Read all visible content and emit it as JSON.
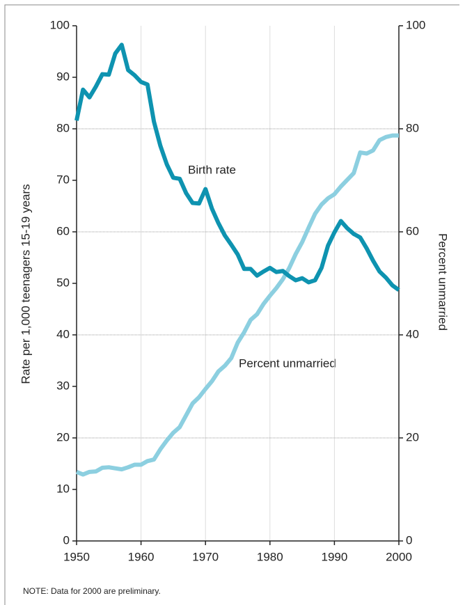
{
  "chart_data": {
    "type": "line",
    "ylabel": "Rate per 1,000 teenagers 15-19 years",
    "y2label": "Percent unmarried",
    "note": "NOTE: Data for 2000 are preliminary.",
    "annotations": [
      "Birth rate",
      "Percent unmarried"
    ],
    "x": [
      1950,
      1951,
      1952,
      1953,
      1954,
      1955,
      1956,
      1957,
      1958,
      1959,
      1960,
      1961,
      1962,
      1963,
      1964,
      1965,
      1966,
      1967,
      1968,
      1969,
      1970,
      1971,
      1972,
      1973,
      1974,
      1975,
      1976,
      1977,
      1978,
      1979,
      1980,
      1981,
      1982,
      1983,
      1984,
      1985,
      1986,
      1987,
      1988,
      1989,
      1990,
      1991,
      1992,
      1993,
      1994,
      1995,
      1996,
      1997,
      1998,
      1999,
      2000
    ],
    "xlim": [
      1950,
      2000
    ],
    "xticks": [
      1950,
      1960,
      1970,
      1980,
      1990,
      2000
    ],
    "ylim": [
      0,
      100
    ],
    "yticks": [
      0,
      10,
      20,
      30,
      40,
      50,
      60,
      70,
      80,
      90,
      100
    ],
    "y2lim": [
      0,
      100
    ],
    "y2ticks": [
      0,
      20,
      40,
      60,
      80,
      100
    ],
    "grid": true,
    "series": [
      {
        "name": "Birth rate",
        "color": "#0e93b0",
        "values": [
          81.6,
          87.6,
          86.1,
          88.2,
          90.6,
          90.5,
          94.6,
          96.3,
          91.4,
          90.4,
          89.1,
          88.6,
          81.4,
          76.7,
          73.1,
          70.5,
          70.3,
          67.5,
          65.6,
          65.5,
          68.3,
          64.5,
          61.7,
          59.3,
          57.5,
          55.6,
          52.8,
          52.8,
          51.5,
          52.3,
          53.0,
          52.2,
          52.4,
          51.4,
          50.6,
          51.0,
          50.2,
          50.6,
          53.0,
          57.3,
          59.9,
          62.1,
          60.7,
          59.6,
          58.9,
          56.8,
          54.4,
          52.3,
          51.1,
          49.6,
          48.7
        ]
      },
      {
        "name": "Percent unmarried",
        "color": "#8ccfe0",
        "axis": "y2",
        "values": [
          13.4,
          12.9,
          13.4,
          13.5,
          14.2,
          14.3,
          14.1,
          13.9,
          14.3,
          14.8,
          14.8,
          15.5,
          15.8,
          17.8,
          19.5,
          21.0,
          22.1,
          24.4,
          26.7,
          27.9,
          29.5,
          31.0,
          32.9,
          34.0,
          35.5,
          38.5,
          40.5,
          42.9,
          44.0,
          46.0,
          47.6,
          49.1,
          50.8,
          53.0,
          55.7,
          58.0,
          60.8,
          63.5,
          65.3,
          66.5,
          67.3,
          68.8,
          70.1,
          71.4,
          75.4,
          75.2,
          75.8,
          77.8,
          78.4,
          78.7,
          78.7
        ]
      }
    ]
  }
}
